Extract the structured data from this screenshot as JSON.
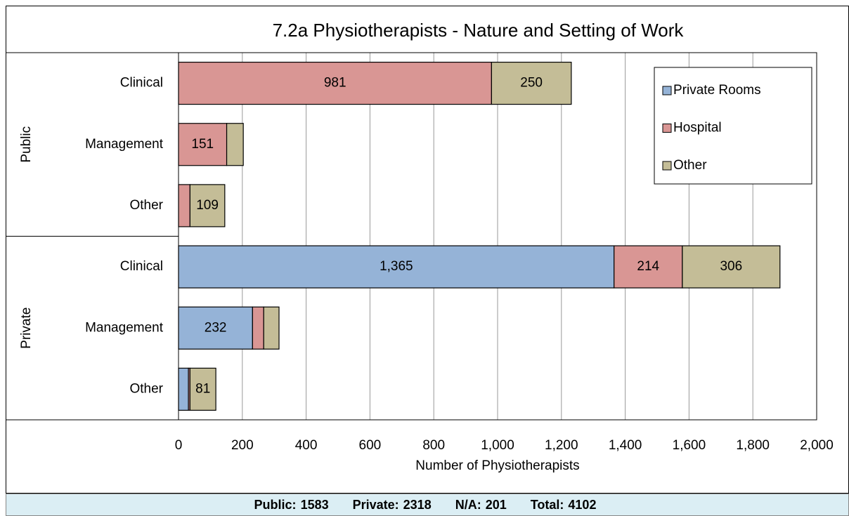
{
  "chart_data": {
    "type": "stacked-bar-horizontal",
    "title": "7.2a Physiotherapists - Nature and Setting of Work",
    "x_label": "Number of Physiotherapists",
    "groups": [
      {
        "name": "Public",
        "categories": [
          "Clinical",
          "Management",
          "Other"
        ]
      },
      {
        "name": "Private",
        "categories": [
          "Clinical",
          "Management",
          "Other"
        ]
      }
    ],
    "series": [
      {
        "name": "Private Rooms",
        "color": "#95b3d7",
        "values": [
          0,
          0,
          0,
          1365,
          232,
          31
        ],
        "value_labels": [
          null,
          null,
          null,
          "1,365",
          "232",
          null
        ]
      },
      {
        "name": "Hospital",
        "color": "#d99694",
        "values": [
          981,
          151,
          36,
          214,
          35,
          5
        ],
        "value_labels": [
          "981",
          "151",
          null,
          "214",
          null,
          null
        ]
      },
      {
        "name": "Other",
        "color": "#c4bd97",
        "values": [
          250,
          52,
          109,
          306,
          48,
          81
        ],
        "value_labels": [
          "250",
          null,
          "109",
          "306",
          null,
          "81"
        ]
      }
    ],
    "xlim": [
      0,
      2000
    ],
    "xticks": [
      0,
      200,
      400,
      600,
      800,
      {
        "value": 1000,
        "label": "1,000"
      },
      {
        "value": 1200,
        "label": "1,200"
      },
      {
        "value": 1400,
        "label": "1,400"
      },
      {
        "value": 1600,
        "label": "1,600"
      },
      {
        "value": 1800,
        "label": "1,800"
      },
      {
        "value": 2000,
        "label": "2,000"
      }
    ],
    "grid": true,
    "legend": "top-right",
    "footer": [
      {
        "label": "Public:",
        "value": 1583
      },
      {
        "label": "Private:",
        "value": 2318
      },
      {
        "label": "N/A:",
        "value": 201
      },
      {
        "label": "Total:",
        "value": 4102
      }
    ]
  }
}
